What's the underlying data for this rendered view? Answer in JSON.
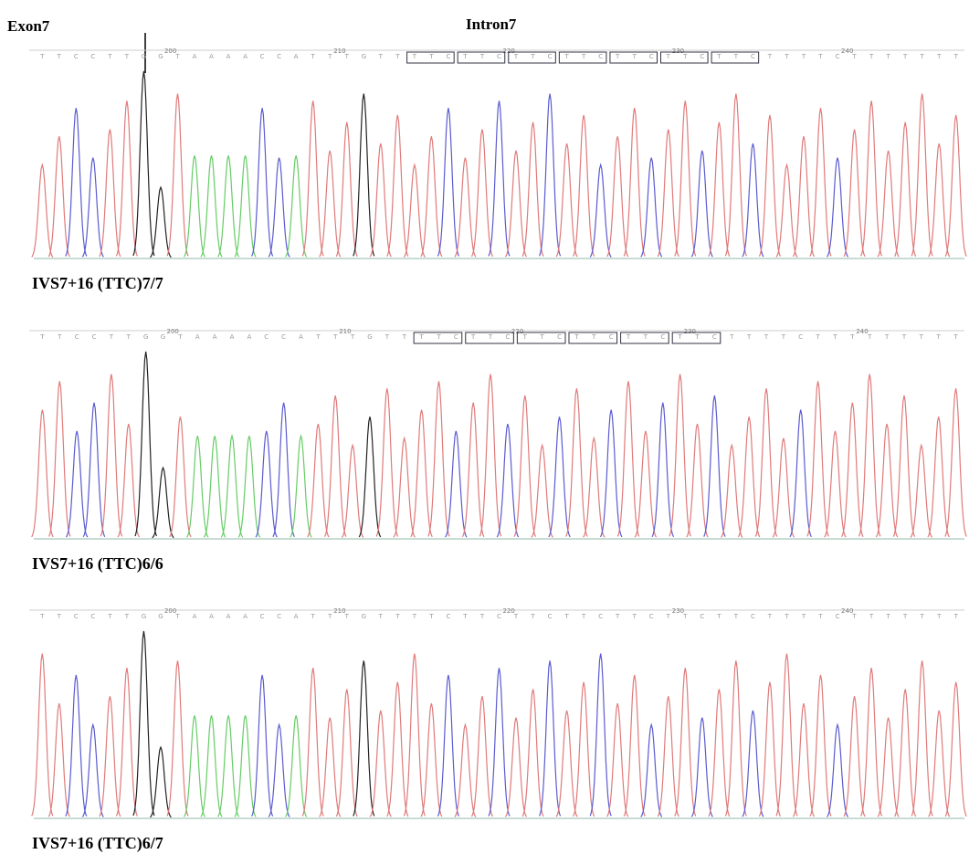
{
  "header": {
    "left": "Exon7",
    "right": "Intron7"
  },
  "panels": [
    {
      "ruler": [
        "200",
        "210",
        "220",
        "230",
        "240"
      ],
      "boxed": true,
      "label": "IVS7+16 (TTC)7/7",
      "bases": [
        "T",
        "T",
        "C",
        "C",
        "T",
        "T",
        "G",
        "G",
        "T",
        "A",
        "A",
        "A",
        "A",
        "C",
        "C",
        "A",
        "T",
        "T",
        "T",
        "G",
        "T",
        "T",
        "T",
        "T",
        "C",
        "T",
        "T",
        "C",
        "T",
        "T",
        "C",
        "T",
        "T",
        "C",
        "T",
        "T",
        "C",
        "T",
        "T",
        "C",
        "T",
        "T",
        "C",
        "T",
        "T",
        "T",
        "T",
        "C",
        "T",
        "T",
        "T",
        "T",
        "T",
        "T",
        "T"
      ]
    },
    {
      "ruler": [
        "200",
        "210",
        "220",
        "230",
        "240"
      ],
      "boxed": true,
      "label": "IVS7+16 (TTC)6/6",
      "bases": [
        "T",
        "T",
        "C",
        "C",
        "T",
        "T",
        "G",
        "G",
        "T",
        "A",
        "A",
        "A",
        "A",
        "C",
        "C",
        "A",
        "T",
        "T",
        "T",
        "G",
        "T",
        "T",
        "T",
        "T",
        "C",
        "T",
        "T",
        "C",
        "T",
        "T",
        "C",
        "T",
        "T",
        "C",
        "T",
        "T",
        "C",
        "T",
        "T",
        "C",
        "T",
        "T",
        "T",
        "T",
        "C",
        "T",
        "T",
        "T",
        "T",
        "T",
        "T",
        "T",
        "T",
        "T"
      ]
    },
    {
      "ruler": [
        "200",
        "210",
        "220",
        "230",
        "240"
      ],
      "boxed": false,
      "label": "IVS7+16 (TTC)6/7",
      "bases": [
        "T",
        "T",
        "C",
        "C",
        "T",
        "T",
        "G",
        "G",
        "T",
        "A",
        "A",
        "A",
        "A",
        "C",
        "C",
        "A",
        "T",
        "T",
        "T",
        "G",
        "T",
        "T",
        "T",
        "T",
        "C",
        "T",
        "T",
        "C",
        "T",
        "T",
        "C",
        "T",
        "T",
        "C",
        "T",
        "T",
        "C",
        "T",
        "T",
        "C",
        "T",
        "T",
        "C",
        "T",
        "T",
        "T",
        "T",
        "C",
        "T",
        "T",
        "T",
        "T",
        "T",
        "T",
        "T"
      ]
    }
  ]
}
